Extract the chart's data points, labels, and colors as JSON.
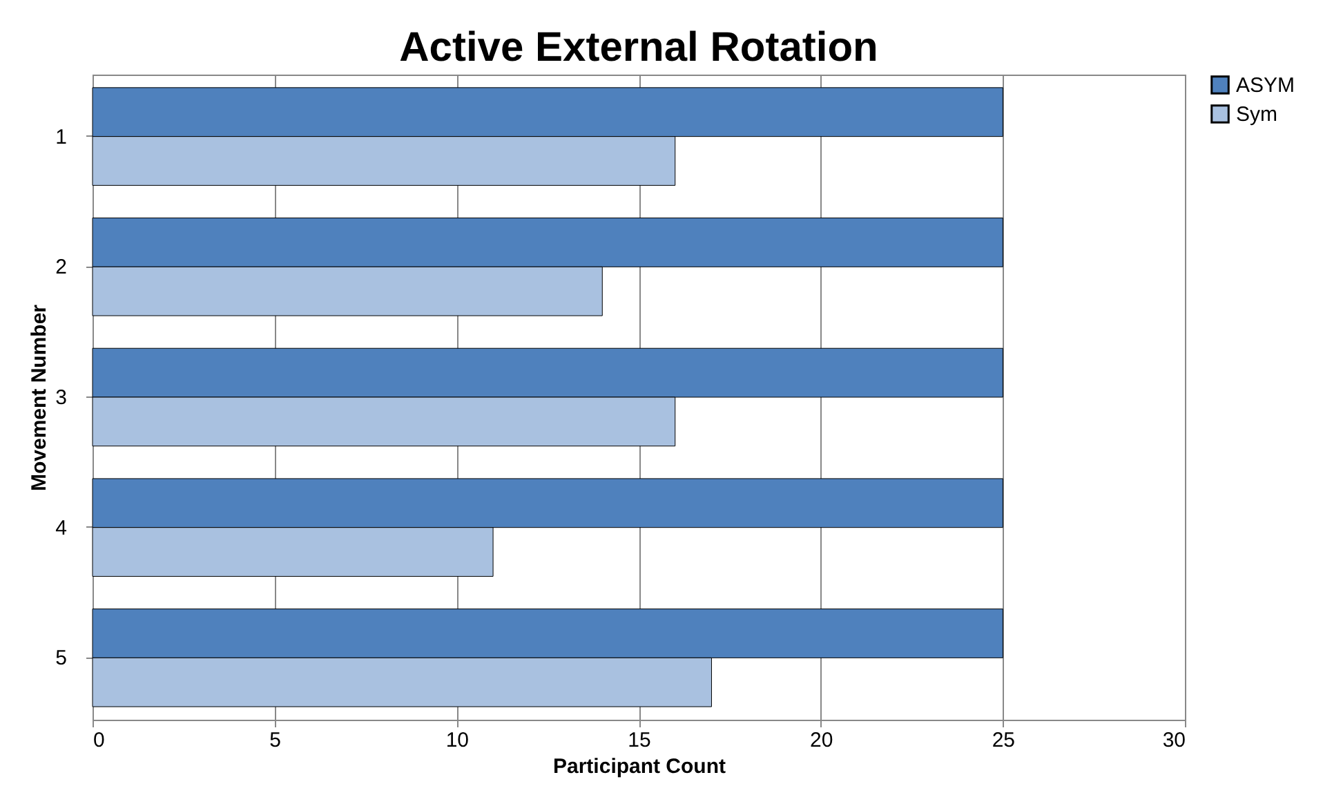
{
  "chart_data": {
    "type": "bar",
    "orientation": "horizontal",
    "title": "Active External Rotation",
    "xlabel": "Participant Count",
    "ylabel": "Movement Number",
    "categories": [
      "1",
      "2",
      "3",
      "4",
      "5"
    ],
    "series": [
      {
        "name": "ASYM",
        "color": "#4f81bd",
        "values": [
          25,
          25,
          25,
          25,
          25
        ]
      },
      {
        "name": "Sym",
        "color": "#a9c1e0",
        "values": [
          16,
          14,
          16,
          11,
          17
        ]
      }
    ],
    "xlim": [
      0,
      30
    ],
    "xticks": [
      0,
      5,
      10,
      15,
      20,
      25,
      30
    ],
    "grid": "x",
    "legend": "right"
  }
}
